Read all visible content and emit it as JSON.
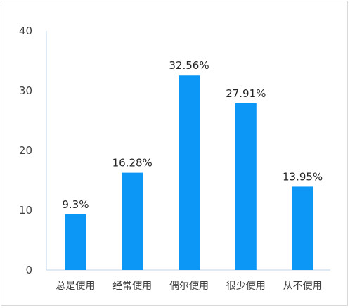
{
  "chart_data": {
    "type": "bar",
    "categories": [
      "总是使用",
      "经常使用",
      "偶尔使用",
      "很少使用",
      "从不使用"
    ],
    "values": [
      9.3,
      16.28,
      32.56,
      27.91,
      13.95
    ],
    "data_labels": [
      "9.3%",
      "16.28%",
      "32.56%",
      "27.91%",
      "13.95%"
    ],
    "title": "",
    "xlabel": "",
    "ylabel": "",
    "ylim": [
      0,
      40
    ],
    "yticks": [
      0,
      10,
      20,
      30,
      40
    ],
    "ytick_labels": [
      "0",
      "10",
      "20",
      "30",
      "40"
    ],
    "grid": false,
    "bar_color": "#0c96f5",
    "axis_color": "#bdd7ee"
  }
}
